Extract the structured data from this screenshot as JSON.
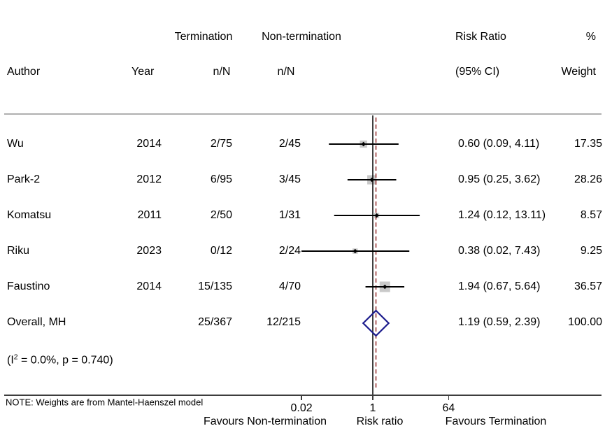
{
  "table": {
    "header": {
      "group_termination": "Termination",
      "group_nontermination": "Non-termination",
      "risk_ratio_line1": "Risk Ratio",
      "percent": "%",
      "author": "Author",
      "year": "Year",
      "nN_termination": "n/N",
      "nN_nontermination": "n/N",
      "risk_ratio_line2": "(95% CI)",
      "weight": "Weight"
    },
    "rows": [
      {
        "author": "Wu",
        "year": "2014",
        "term_nN": "2/75",
        "nonterm_nN": "2/45",
        "rr_ci": "0.60 (0.09, 4.11)",
        "weight": "17.35"
      },
      {
        "author": "Park-2",
        "year": "2012",
        "term_nN": "6/95",
        "nonterm_nN": "3/45",
        "rr_ci": "0.95 (0.25, 3.62)",
        "weight": "28.26"
      },
      {
        "author": "Komatsu",
        "year": "2011",
        "term_nN": "2/50",
        "nonterm_nN": "1/31",
        "rr_ci": "1.24 (0.12, 13.11)",
        "weight": "8.57"
      },
      {
        "author": "Riku",
        "year": "2023",
        "term_nN": "0/12",
        "nonterm_nN": "2/24",
        "rr_ci": "0.38 (0.02, 7.43)",
        "weight": "9.25"
      },
      {
        "author": "Faustino",
        "year": "2014",
        "term_nN": "15/135",
        "nonterm_nN": "4/70",
        "rr_ci": "1.94 (0.67, 5.64)",
        "weight": "36.57"
      },
      {
        "author": "Overall, MH",
        "year": "",
        "term_nN": "25/367",
        "nonterm_nN": "12/215",
        "rr_ci": "1.19 (0.59, 2.39)",
        "weight": "100.00"
      }
    ],
    "heterogeneity": {
      "prefix": "(I",
      "sup": "2",
      "suffix": " = 0.0%, p = 0.740)"
    }
  },
  "note": "NOTE: Weights are from Mantel-Haenszel model",
  "axis": {
    "tick_labels": [
      "0.02",
      "1",
      "64"
    ],
    "label_left": "Favours Non-termination",
    "label_center": "Risk ratio",
    "label_right": "Favours Termination"
  },
  "colors": {
    "diamond_outline": "#1a1a8c",
    "overall_dashed_line": "#993737",
    "weight_square": "#c9c9c9",
    "ci_line": "#000000",
    "ref_line": "#111111",
    "separator": "#b0b0b0",
    "axis": "#3d3d3d"
  },
  "chart_data": {
    "type": "scatter",
    "subtype": "forest-plot",
    "x_scale": "log",
    "x_ticks": [
      0.02,
      1,
      64
    ],
    "x_axis_label": "Risk ratio",
    "direction_label_left": "Favours Non-termination",
    "direction_label_right": "Favours Termination",
    "reference_line_x": 1,
    "overall_dashed_line_x": 1.19,
    "effect_measure": "Risk Ratio (95% CI)",
    "model": "Mantel-Haenszel",
    "studies": [
      {
        "name": "Wu",
        "year": 2014,
        "termination": {
          "n": 2,
          "N": 75
        },
        "non_termination": {
          "n": 2,
          "N": 45
        },
        "rr": 0.6,
        "ci_low": 0.09,
        "ci_high": 4.11,
        "weight_pct": 17.35
      },
      {
        "name": "Park-2",
        "year": 2012,
        "termination": {
          "n": 6,
          "N": 95
        },
        "non_termination": {
          "n": 3,
          "N": 45
        },
        "rr": 0.95,
        "ci_low": 0.25,
        "ci_high": 3.62,
        "weight_pct": 28.26
      },
      {
        "name": "Komatsu",
        "year": 2011,
        "termination": {
          "n": 2,
          "N": 50
        },
        "non_termination": {
          "n": 1,
          "N": 31
        },
        "rr": 1.24,
        "ci_low": 0.12,
        "ci_high": 13.11,
        "weight_pct": 8.57
      },
      {
        "name": "Riku",
        "year": 2023,
        "termination": {
          "n": 0,
          "N": 12
        },
        "non_termination": {
          "n": 2,
          "N": 24
        },
        "rr": 0.38,
        "ci_low": 0.02,
        "ci_high": 7.43,
        "weight_pct": 9.25
      },
      {
        "name": "Faustino",
        "year": 2014,
        "termination": {
          "n": 15,
          "N": 135
        },
        "non_termination": {
          "n": 4,
          "N": 70
        },
        "rr": 1.94,
        "ci_low": 0.67,
        "ci_high": 5.64,
        "weight_pct": 36.57
      }
    ],
    "overall": {
      "name": "Overall, MH",
      "termination": {
        "n": 25,
        "N": 367
      },
      "non_termination": {
        "n": 12,
        "N": 215
      },
      "rr": 1.19,
      "ci_low": 0.59,
      "ci_high": 2.39,
      "weight_pct": 100.0,
      "heterogeneity_I2": "0.0%",
      "heterogeneity_p": 0.74
    }
  }
}
